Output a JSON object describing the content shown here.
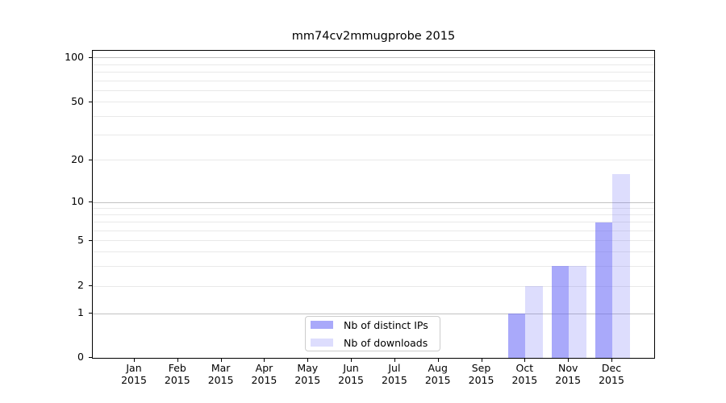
{
  "chart_data": {
    "type": "bar",
    "title": "mm74cv2mmugprobe 2015",
    "xlabel": "",
    "ylabel": "",
    "categories": [
      {
        "month": "Jan",
        "year": "2015"
      },
      {
        "month": "Feb",
        "year": "2015"
      },
      {
        "month": "Mar",
        "year": "2015"
      },
      {
        "month": "Apr",
        "year": "2015"
      },
      {
        "month": "May",
        "year": "2015"
      },
      {
        "month": "Jun",
        "year": "2015"
      },
      {
        "month": "Jul",
        "year": "2015"
      },
      {
        "month": "Aug",
        "year": "2015"
      },
      {
        "month": "Sep",
        "year": "2015"
      },
      {
        "month": "Oct",
        "year": "2015"
      },
      {
        "month": "Nov",
        "year": "2015"
      },
      {
        "month": "Dec",
        "year": "2015"
      }
    ],
    "series": [
      {
        "name": "Nb of distinct IPs",
        "key": "distinct-ips",
        "color": "rgba(98,98,245,0.55)",
        "values": [
          null,
          null,
          null,
          null,
          null,
          null,
          null,
          null,
          null,
          1,
          3,
          7
        ]
      },
      {
        "name": "Nb of downloads",
        "key": "downloads",
        "color": "rgba(98,98,245,0.22)",
        "values": [
          null,
          null,
          null,
          null,
          null,
          null,
          null,
          null,
          null,
          2,
          3,
          16
        ]
      }
    ],
    "y_axis": {
      "scale": "symlog-like",
      "tick_labels": [
        0,
        1,
        2,
        5,
        10,
        20,
        50,
        100
      ],
      "range_top": 115,
      "scale_anchors": [
        [
          0,
          0.0
        ],
        [
          1,
          0.1432
        ],
        [
          2,
          0.233
        ],
        [
          5,
          0.3814
        ],
        [
          10,
          0.506
        ],
        [
          20,
          0.6432
        ],
        [
          50,
          0.8325
        ],
        [
          100,
          0.9772
        ]
      ]
    },
    "grid": {
      "major_values": [
        1,
        10,
        100
      ],
      "minor_values": [
        2,
        3,
        4,
        5,
        6,
        7,
        8,
        9,
        20,
        30,
        40,
        50,
        60,
        70,
        80,
        90
      ],
      "major_color": "#c2c2c2",
      "minor_color": "#e9e9e9"
    },
    "legend": {
      "position": "lower center-left",
      "border_color": "#cccccc",
      "background": "#ffffff"
    },
    "axis_color": "#000000"
  }
}
